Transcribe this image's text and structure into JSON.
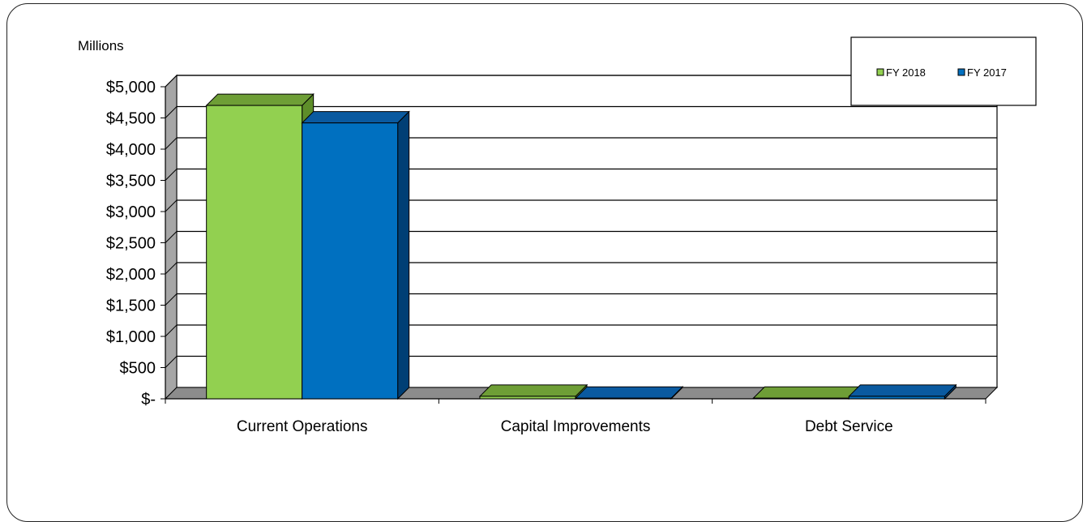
{
  "chart_data": {
    "type": "bar",
    "unit_label": "Millions",
    "categories": [
      "Current Operations",
      "Capital Improvements",
      "Debt Service"
    ],
    "series": [
      {
        "name": "FY 2018",
        "values": [
          4700,
          40,
          10
        ],
        "color": "#92d050",
        "side_color": "#5e8e2a",
        "top_color": "#6e9e36"
      },
      {
        "name": "FY 2017",
        "values": [
          4420,
          10,
          40
        ],
        "color": "#0070c0",
        "side_color": "#003f75",
        "top_color": "#0a5aa0"
      }
    ],
    "ylim": [
      0,
      5000
    ],
    "yticks": [
      0,
      500,
      1000,
      1500,
      2000,
      2500,
      3000,
      3500,
      4000,
      4500,
      5000
    ],
    "ytick_labels": [
      "$-",
      "$500",
      "$1,000",
      "$1,500",
      "$2,000",
      "$2,500",
      "$3,000",
      "$3,500",
      "$4,000",
      "$4,500",
      "$5,000"
    ],
    "grid": true,
    "legend_position": "top-right",
    "style": "3d-clustered-column"
  }
}
